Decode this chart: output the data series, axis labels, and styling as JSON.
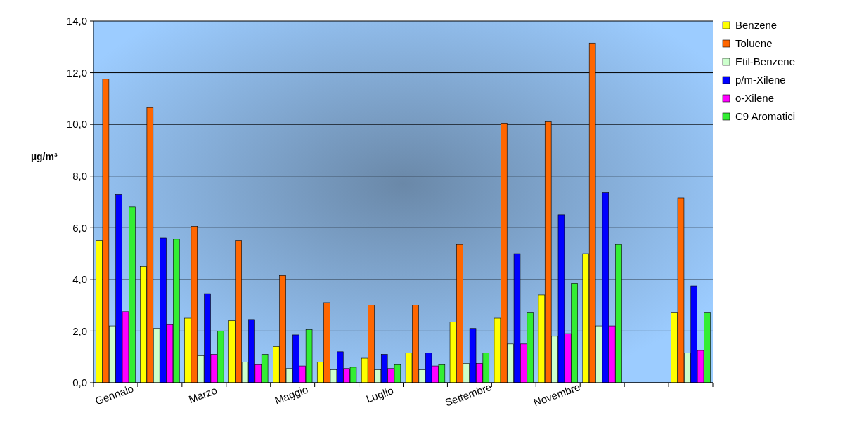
{
  "chart_data": {
    "type": "bar",
    "ylabel": "µg/m³",
    "categories": [
      "Gennaio",
      null,
      "Marzo",
      null,
      "Maggio",
      null,
      "Luglio",
      null,
      "Settembre",
      null,
      "Novembre",
      null,
      null,
      null
    ],
    "series": [
      {
        "name": "Benzene",
        "color": "#ffff00",
        "values": [
          5.5,
          4.5,
          2.5,
          2.4,
          1.4,
          0.8,
          0.95,
          1.15,
          2.35,
          2.5,
          3.4,
          5.0,
          null,
          2.7
        ]
      },
      {
        "name": "Toluene",
        "color": "#ff6600",
        "values": [
          11.75,
          10.65,
          6.05,
          5.5,
          4.15,
          3.1,
          3.0,
          3.0,
          5.35,
          10.05,
          10.1,
          13.15,
          null,
          7.15
        ]
      },
      {
        "name": "Etil-Benzene",
        "color": "#ccffcc",
        "values": [
          2.2,
          2.1,
          1.05,
          0.8,
          0.55,
          0.5,
          0.5,
          0.5,
          0.75,
          1.5,
          1.8,
          2.2,
          null,
          1.15
        ]
      },
      {
        "name": "p/m-Xilene",
        "color": "#0000ff",
        "values": [
          7.3,
          5.6,
          3.45,
          2.45,
          1.85,
          1.2,
          1.1,
          1.15,
          2.1,
          5.0,
          6.5,
          7.35,
          null,
          3.75
        ]
      },
      {
        "name": "o-Xilene",
        "color": "#ff00ff",
        "values": [
          2.75,
          2.25,
          1.1,
          0.7,
          0.65,
          0.55,
          0.55,
          0.65,
          0.75,
          1.5,
          1.9,
          2.2,
          null,
          1.25
        ]
      },
      {
        "name": "C9 Aromatici",
        "color": "#33ee33",
        "values": [
          6.8,
          5.55,
          2.0,
          1.1,
          2.05,
          0.6,
          0.7,
          0.7,
          1.15,
          2.7,
          3.85,
          5.35,
          null,
          2.7
        ]
      }
    ],
    "ylim": [
      0,
      14
    ],
    "yticks": [
      {
        "value": 0,
        "label": "0,0"
      },
      {
        "value": 2,
        "label": "2,0"
      },
      {
        "value": 4,
        "label": "4,0"
      },
      {
        "value": 6,
        "label": "6,0"
      },
      {
        "value": 8,
        "label": "8,0"
      },
      {
        "value": 10,
        "label": "10,0"
      },
      {
        "value": 12,
        "label": "12,0"
      },
      {
        "value": 14,
        "label": "14,0"
      }
    ],
    "grid": "y",
    "legend": "right"
  }
}
